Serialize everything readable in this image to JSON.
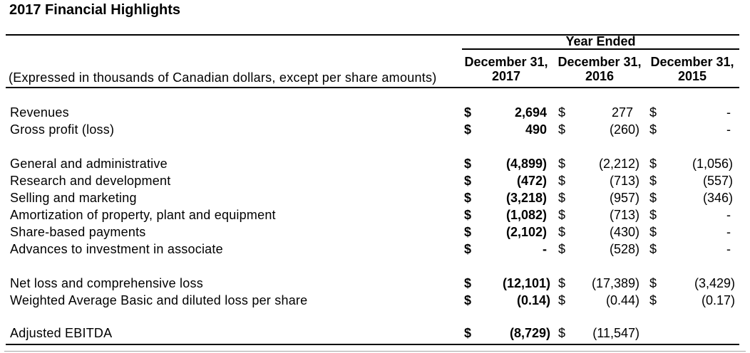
{
  "title": "2017 Financial Highlights",
  "table": {
    "group_header": "Year Ended",
    "caption": "(Expressed in thousands of Canadian dollars, except per share amounts)",
    "currency_symbol": "$",
    "columns": [
      {
        "line1": "December 31,",
        "year": "2017"
      },
      {
        "line1": "December 31,",
        "year": "2016"
      },
      {
        "line1": "December 31,",
        "year": "2015"
      }
    ],
    "rows": [
      {
        "label": "Revenues",
        "v2017": "2,694",
        "v2016": "277",
        "v2015": "-"
      },
      {
        "label": "Gross profit (loss)",
        "v2017": "490",
        "v2016": "(260)",
        "v2015": "-"
      },
      {
        "blank": true
      },
      {
        "label": "General and administrative",
        "v2017": "(4,899)",
        "v2016": "(2,212)",
        "v2015": "(1,056)"
      },
      {
        "label": "Research and development",
        "v2017": "(472)",
        "v2016": "(713)",
        "v2015": "(557)"
      },
      {
        "label": "Selling and marketing",
        "v2017": "(3,218)",
        "v2016": "(957)",
        "v2015": "(346)"
      },
      {
        "label": "Amortization of property, plant and equipment",
        "v2017": "(1,082)",
        "v2016": "(713)",
        "v2015": "-"
      },
      {
        "label": "Share-based payments",
        "v2017": "(2,102)",
        "v2016": "(430)",
        "v2015": "-"
      },
      {
        "label": "Advances to investment in associate",
        "v2017": "-",
        "v2016": "(528)",
        "v2015": "-"
      },
      {
        "blank": true
      },
      {
        "label": "Net loss and comprehensive loss",
        "v2017": "(12,101)",
        "v2016": "(17,389)",
        "v2015": "(3,429)"
      },
      {
        "label": "Weighted Average Basic and diluted loss per share",
        "v2017": "(0.14)",
        "v2016": "(0.44)",
        "v2015": "(0.17)"
      },
      {
        "blank": true
      },
      {
        "label": "Adjusted EBITDA",
        "v2017": "(8,729)",
        "v2016": "(11,547)",
        "v2015": null
      }
    ]
  }
}
